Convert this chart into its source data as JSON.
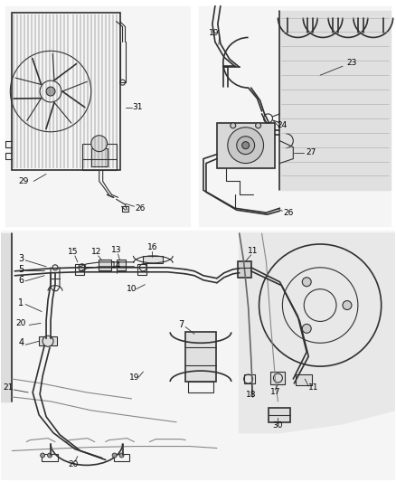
{
  "bg_color": "#f0f0f0",
  "line_color": "#2a2a2a",
  "label_color": "#000000",
  "panel_bg": "#e8e8e8"
}
